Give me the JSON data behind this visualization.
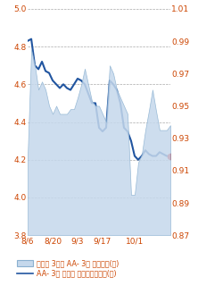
{
  "left_ylim": [
    3.8,
    5.0
  ],
  "right_ylim": [
    0.87,
    1.01
  ],
  "left_yticks": [
    3.8,
    4.0,
    4.2,
    4.4,
    4.6,
    4.8,
    5.0
  ],
  "right_yticks": [
    0.87,
    0.89,
    0.91,
    0.93,
    0.95,
    0.97,
    0.99,
    1.01
  ],
  "xtick_labels": [
    "8/6",
    "8/20",
    "9/3",
    "9/17",
    "10/1"
  ],
  "xtick_positions": [
    0,
    7,
    14,
    21,
    30
  ],
  "line_color": "#2155a0",
  "area_facecolor": "#c5d8ec",
  "area_edgecolor": "#8ab0d0",
  "last_dot_color": "#dd1111",
  "x": [
    0,
    1,
    2,
    3,
    4,
    5,
    6,
    7,
    8,
    9,
    10,
    11,
    12,
    13,
    14,
    15,
    16,
    17,
    18,
    19,
    20,
    21,
    22,
    23,
    24,
    25,
    26,
    27,
    28,
    29,
    30,
    31,
    32,
    33,
    34,
    35,
    36,
    37,
    38,
    39,
    40
  ],
  "line_vals": [
    4.83,
    4.84,
    4.7,
    4.68,
    4.72,
    4.67,
    4.66,
    4.62,
    4.6,
    4.58,
    4.6,
    4.58,
    4.57,
    4.6,
    4.63,
    4.62,
    4.6,
    4.55,
    4.5,
    4.5,
    4.37,
    4.35,
    4.37,
    4.62,
    4.6,
    4.57,
    4.5,
    4.37,
    4.35,
    4.3,
    4.22,
    4.2,
    4.22,
    4.25,
    4.23,
    4.22,
    4.22,
    4.24,
    4.23,
    4.22,
    4.22
  ],
  "area_vals": [
    0.92,
    0.985,
    0.975,
    0.96,
    0.965,
    0.96,
    0.95,
    0.945,
    0.95,
    0.945,
    0.945,
    0.945,
    0.948,
    0.948,
    0.955,
    0.963,
    0.973,
    0.963,
    0.953,
    0.95,
    0.95,
    0.945,
    0.94,
    0.975,
    0.97,
    0.96,
    0.955,
    0.95,
    0.945,
    0.895,
    0.895,
    0.915,
    0.92,
    0.935,
    0.947,
    0.96,
    0.947,
    0.935,
    0.935,
    0.935,
    0.938
  ],
  "legend1": "국고체 3년과 AA- 3년 스프레드(右)",
  "legend2": "AA- 3년 회사체 최종호가수익률(左)",
  "tick_color": "#cc4400",
  "bg_color": "#ffffff",
  "grid_color": "#aaaaaa"
}
